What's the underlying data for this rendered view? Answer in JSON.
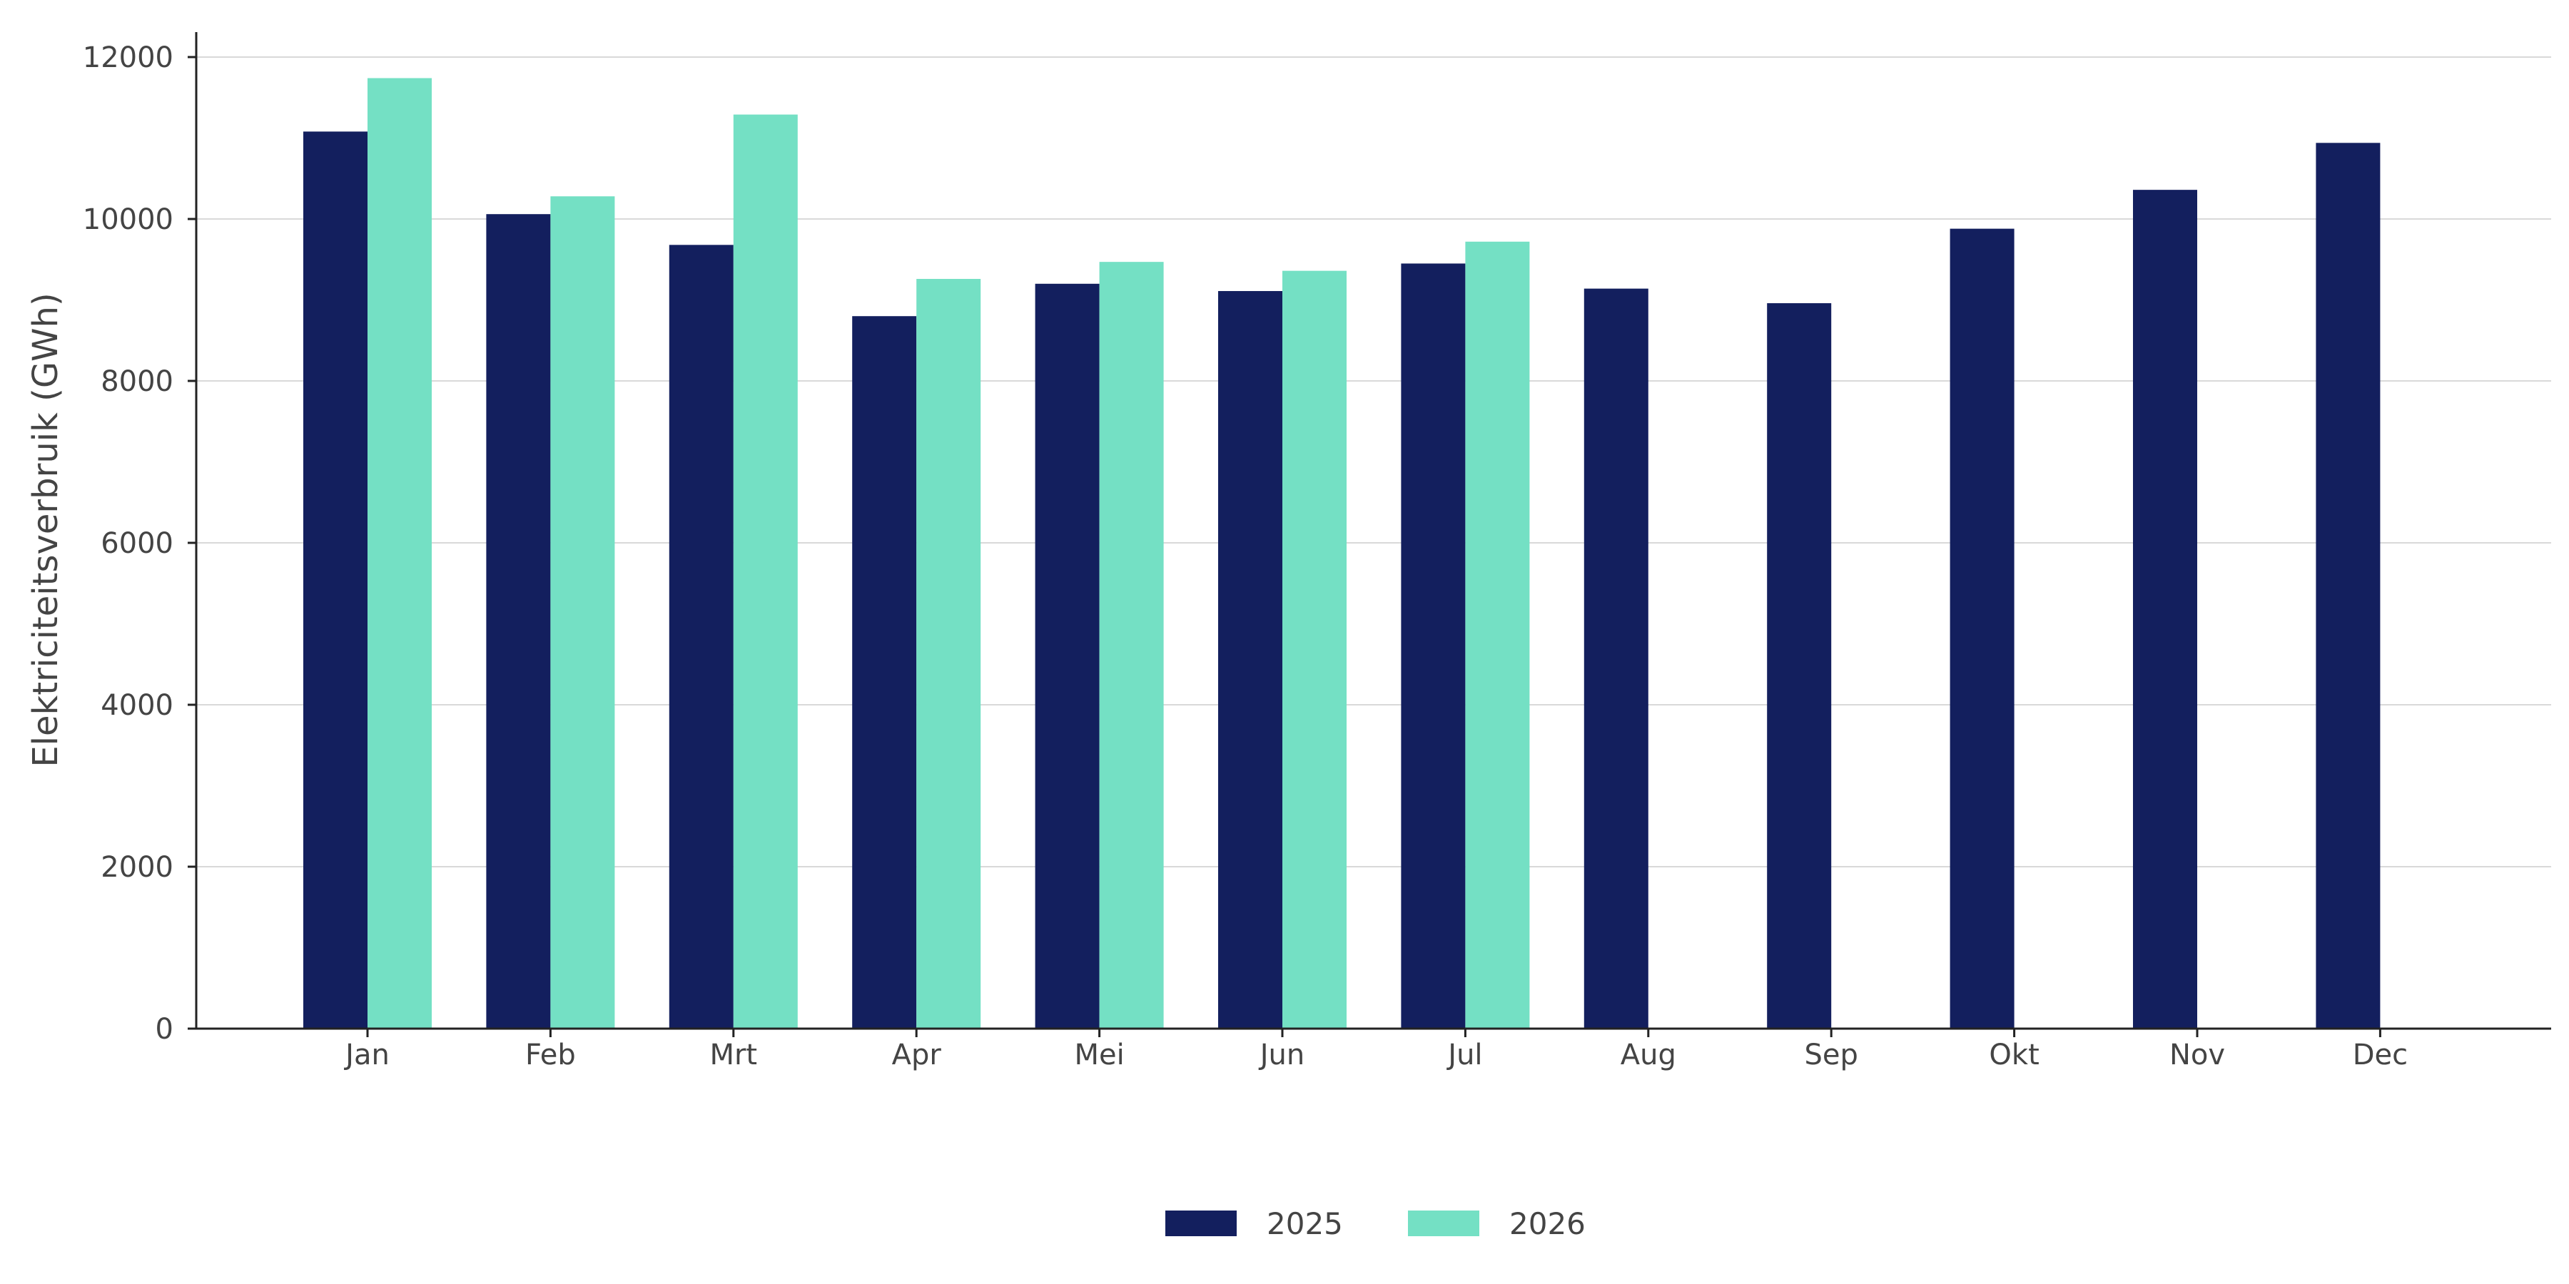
{
  "chart_data": {
    "type": "bar",
    "title": "",
    "xlabel": "",
    "ylabel": "Elektriciteitsverbruik (GWh)",
    "categories": [
      "Jan",
      "Feb",
      "Mrt",
      "Apr",
      "Mei",
      "Jun",
      "Jul",
      "Aug",
      "Sep",
      "Okt",
      "Nov",
      "Dec"
    ],
    "series": [
      {
        "name": "2025",
        "color": "#131f5e",
        "values": [
          11080,
          10060,
          9680,
          8800,
          9200,
          9110,
          9450,
          9140,
          8960,
          9880,
          10360,
          10940
        ]
      },
      {
        "name": "2026",
        "color": "#74e0c4",
        "values": [
          11740,
          10280,
          11290,
          9260,
          9470,
          9360,
          9720,
          null,
          null,
          null,
          null,
          null
        ]
      }
    ],
    "ylim": [
      0,
      12000
    ],
    "yticks": [
      0,
      2000,
      4000,
      6000,
      8000,
      10000,
      12000
    ],
    "grid": "horizontal",
    "legend_position": "bottom-center"
  }
}
